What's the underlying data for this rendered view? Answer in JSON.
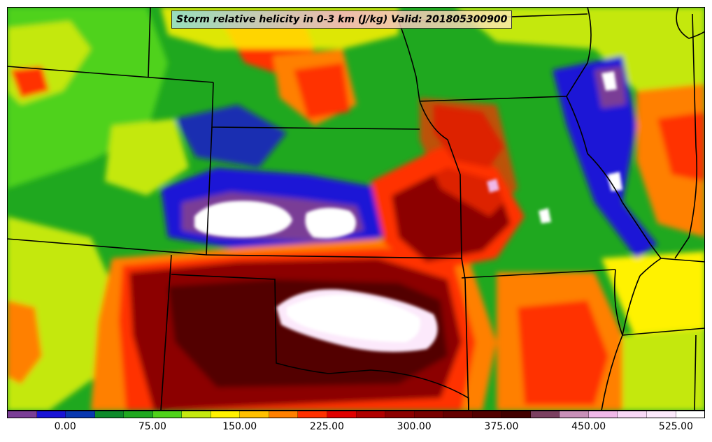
{
  "title": "Storm relative helicity in 0-3 km (J/kg) Valid: 201805300900",
  "colorbar": {
    "colors": [
      "#7a3e96",
      "#1a14d6",
      "#0a38b0",
      "#0d8a2a",
      "#1fa81f",
      "#4fd21a",
      "#c4e810",
      "#fff200",
      "#ffc000",
      "#ff8000",
      "#ff3000",
      "#e00000",
      "#b00000",
      "#8c0000",
      "#780000",
      "#640000",
      "#520000",
      "#420000",
      "#7a4060",
      "#c890b8",
      "#f0b8e8",
      "#f8d8f6",
      "#fce9fb",
      "#ffffff"
    ],
    "ticks": [
      {
        "label": "0.00",
        "value": 0
      },
      {
        "label": "75.00",
        "value": 75
      },
      {
        "label": "150.00",
        "value": 150
      },
      {
        "label": "225.00",
        "value": 225
      },
      {
        "label": "300.00",
        "value": 300
      },
      {
        "label": "375.00",
        "value": 375
      },
      {
        "label": "450.00",
        "value": 450
      },
      {
        "label": "525.00",
        "value": 525
      }
    ],
    "min": -50,
    "max": 550
  },
  "field_colors": {
    "background": "#1fa81f",
    "light_green": "#4fd21a",
    "yellow_green": "#c4e810",
    "yellow": "#fff200",
    "orange": "#ff8000",
    "red": "#ff3000",
    "dark_red": "#8c0000",
    "maroon": "#520000",
    "blue": "#1a14d6",
    "purple": "#7a3e96",
    "white": "#ffffff",
    "light_pink": "#fce9fb"
  }
}
